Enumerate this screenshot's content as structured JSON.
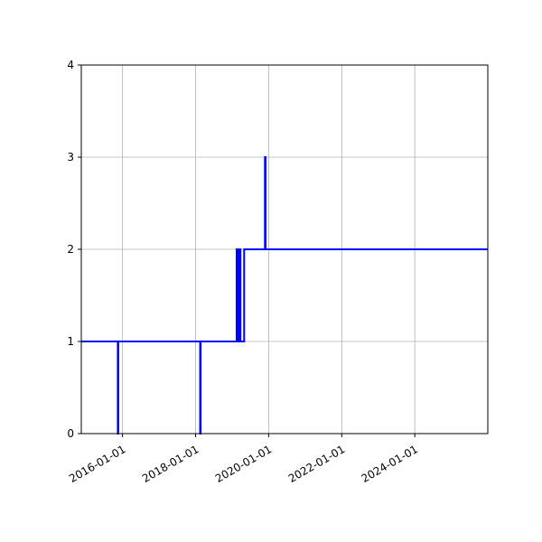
{
  "chart_data": {
    "type": "line",
    "title": "",
    "xlabel": "",
    "ylabel": "",
    "x_axis_type": "date",
    "xlim": [
      "2014-11-15",
      "2025-12-31"
    ],
    "ylim": [
      0,
      4
    ],
    "grid": true,
    "legend": "none",
    "x_ticks": [
      "2016-01-01",
      "2018-01-01",
      "2020-01-01",
      "2022-01-01",
      "2024-01-01"
    ],
    "y_ticks": [
      0,
      1,
      2,
      3,
      4
    ],
    "series": [
      {
        "color": "#0000ff",
        "step": true,
        "x": [
          "2014-11-15",
          "2015-11-15",
          "2015-11-15",
          "2015-11-20",
          "2015-11-20",
          "2018-02-15",
          "2018-02-15",
          "2018-02-20",
          "2018-02-20",
          "2019-02-15",
          "2019-02-15",
          "2019-02-25",
          "2019-02-25",
          "2019-03-15",
          "2019-03-15",
          "2019-03-25",
          "2019-03-25",
          "2019-05-01",
          "2019-05-01",
          "2019-11-25",
          "2019-11-25",
          "2019-12-01",
          "2019-12-01",
          "2025-12-31"
        ],
        "y": [
          1,
          1,
          0,
          0,
          1,
          1,
          0,
          0,
          1,
          1,
          2,
          2,
          1,
          1,
          2,
          2,
          1,
          1,
          2,
          2,
          3,
          3,
          2,
          2
        ]
      }
    ]
  }
}
